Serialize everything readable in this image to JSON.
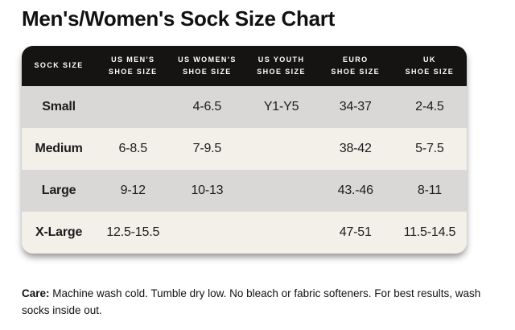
{
  "page": {
    "title": "Men's/Women's Sock Size Chart",
    "care": {
      "label": "Care:",
      "text": " Machine wash cold. Tumble dry low. No bleach or fabric softeners. For best results, wash socks inside out."
    }
  },
  "colors": {
    "page_bg": "#ffffff",
    "header_bg": "#161412",
    "header_text": "#ffffff",
    "row_gray": "#d9d8d6",
    "row_cream": "#f3f0e9",
    "text_dark": "#1c1c1c"
  },
  "chart_data": {
    "type": "table",
    "title": "Men's/Women's Sock Size Chart",
    "columns": [
      "Sock Size",
      "US Men's Shoe Size",
      "US Women's Shoe Size",
      "US Youth Shoe Size",
      "Euro Shoe Size",
      "UK Shoe Size"
    ],
    "header_display": [
      "SOCK SIZE",
      "US MEN'S\nSHOE SIZE",
      "US WOMEN'S\nSHOE SIZE",
      "US YOUTH\nSHOE SIZE",
      "EURO\nSHOE SIZE",
      "UK\nSHOE SIZE"
    ],
    "rows": [
      {
        "cells": [
          "Small",
          "",
          "4-6.5",
          "Y1-Y5",
          "34-37",
          "2-4.5"
        ]
      },
      {
        "cells": [
          "Medium",
          "6-8.5",
          "7-9.5",
          "",
          "38-42",
          "5-7.5"
        ]
      },
      {
        "cells": [
          "Large",
          "9-12",
          "10-13",
          "",
          "43.-46",
          "8-11"
        ]
      },
      {
        "cells": [
          "X-Large",
          "12.5-15.5",
          "",
          "",
          "47-51",
          "11.5-14.5"
        ]
      }
    ],
    "layout": {
      "row_striping": [
        "gray",
        "cream",
        "gray",
        "cream"
      ],
      "header_corner_radius_px": 14
    }
  }
}
